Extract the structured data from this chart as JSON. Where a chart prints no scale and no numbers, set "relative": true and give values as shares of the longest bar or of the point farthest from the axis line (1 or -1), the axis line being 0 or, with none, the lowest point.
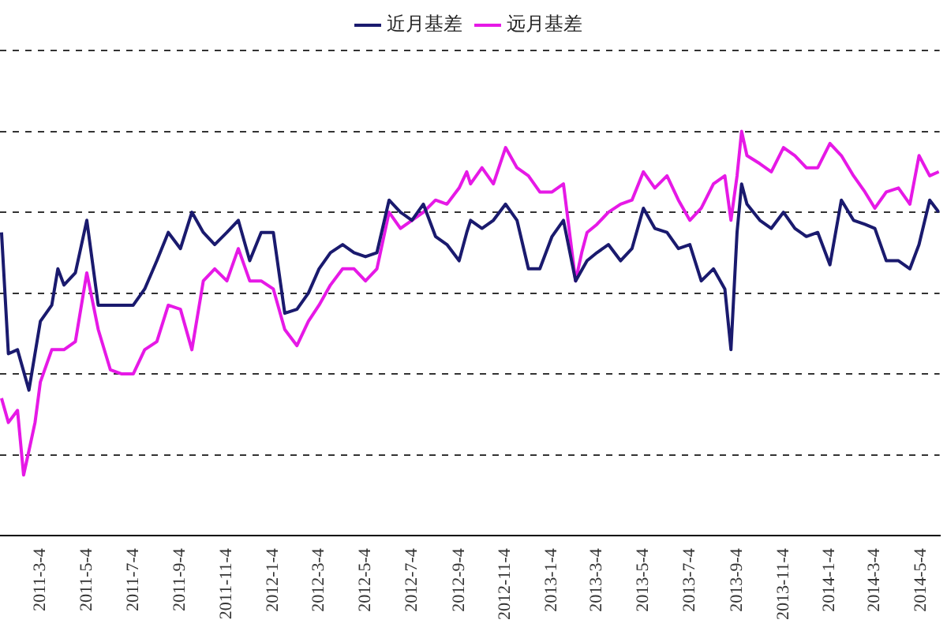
{
  "chart_data": {
    "type": "line",
    "relative": true,
    "grid": "y",
    "legend": "top",
    "marker": "none",
    "line_style": "solid",
    "xlim": [
      "2011-01-10",
      "2014-05-28"
    ],
    "xticks": [
      {
        "value": "2011-03-04",
        "label": "2011-3-4"
      },
      {
        "value": "2011-05-04",
        "label": "2011-5-4"
      },
      {
        "value": "2011-07-04",
        "label": "2011-7-4"
      },
      {
        "value": "2011-09-04",
        "label": "2011-9-4"
      },
      {
        "value": "2011-11-04",
        "label": "2011-11-4"
      },
      {
        "value": "2012-01-04",
        "label": "2012-1-4"
      },
      {
        "value": "2012-03-04",
        "label": "2012-3-4"
      },
      {
        "value": "2012-05-04",
        "label": "2012-5-4"
      },
      {
        "value": "2012-07-04",
        "label": "2012-7-4"
      },
      {
        "value": "2012-09-04",
        "label": "2012-9-4"
      },
      {
        "value": "2012-11-04",
        "label": "2012-11-4"
      },
      {
        "value": "2013-01-04",
        "label": "2013-1-4"
      },
      {
        "value": "2013-03-04",
        "label": "2013-3-4"
      },
      {
        "value": "2013-05-04",
        "label": "2013-5-4"
      },
      {
        "value": "2013-07-04",
        "label": "2013-7-4"
      },
      {
        "value": "2013-09-04",
        "label": "2013-9-4"
      },
      {
        "value": "2013-11-04",
        "label": "2013-11-4"
      },
      {
        "value": "2014-01-04",
        "label": "2014-1-4"
      },
      {
        "value": "2014-03-04",
        "label": "2014-3-4"
      },
      {
        "value": "2014-05-04",
        "label": "2014-5-4"
      }
    ],
    "series": [
      {
        "name": "近月基差",
        "color": "#1a1a6e",
        "x": [
          "2011-01-12",
          "2011-01-21",
          "2011-02-02",
          "2011-02-17",
          "2011-03-04",
          "2011-03-19",
          "2011-03-27",
          "2011-04-04",
          "2011-04-19",
          "2011-05-04",
          "2011-05-19",
          "2011-06-04",
          "2011-06-19",
          "2011-07-04",
          "2011-07-19",
          "2011-08-04",
          "2011-08-19",
          "2011-09-04",
          "2011-09-19",
          "2011-10-04",
          "2011-10-19",
          "2011-11-04",
          "2011-11-19",
          "2011-12-04",
          "2011-12-19",
          "2012-01-04",
          "2012-01-19",
          "2012-02-04",
          "2012-02-19",
          "2012-03-04",
          "2012-03-19",
          "2012-04-04",
          "2012-04-19",
          "2012-05-04",
          "2012-05-19",
          "2012-06-04",
          "2012-06-19",
          "2012-07-04",
          "2012-07-19",
          "2012-08-04",
          "2012-08-19",
          "2012-09-04",
          "2012-09-14",
          "2012-09-19",
          "2012-10-04",
          "2012-10-19",
          "2012-11-04",
          "2012-11-19",
          "2012-12-04",
          "2012-12-19",
          "2013-01-04",
          "2013-01-19",
          "2013-02-04",
          "2013-02-19",
          "2013-03-04",
          "2013-03-19",
          "2013-04-04",
          "2013-04-19",
          "2013-05-04",
          "2013-05-19",
          "2013-06-04",
          "2013-06-19",
          "2013-07-04",
          "2013-07-19",
          "2013-08-04",
          "2013-08-19",
          "2013-08-27",
          "2013-09-04",
          "2013-09-10",
          "2013-09-17",
          "2013-10-04",
          "2013-10-19",
          "2013-11-04",
          "2013-11-19",
          "2013-12-04",
          "2013-12-19",
          "2014-01-04",
          "2014-01-19",
          "2014-02-04",
          "2014-02-19",
          "2014-03-04",
          "2014-03-19",
          "2014-04-04",
          "2014-04-19",
          "2014-05-01",
          "2014-05-15",
          "2014-05-27"
        ],
        "values": [
          0.75,
          0.45,
          0.46,
          0.36,
          0.53,
          0.57,
          0.66,
          0.62,
          0.65,
          0.78,
          0.57,
          0.57,
          0.57,
          0.57,
          0.61,
          0.68,
          0.75,
          0.71,
          0.8,
          0.75,
          0.72,
          0.75,
          0.78,
          0.68,
          0.75,
          0.75,
          0.55,
          0.56,
          0.6,
          0.66,
          0.7,
          0.72,
          0.7,
          0.69,
          0.7,
          0.83,
          0.8,
          0.78,
          0.82,
          0.74,
          0.72,
          0.68,
          0.75,
          0.78,
          0.76,
          0.78,
          0.82,
          0.78,
          0.66,
          0.66,
          0.74,
          0.78,
          0.63,
          0.68,
          0.7,
          0.72,
          0.68,
          0.71,
          0.81,
          0.76,
          0.75,
          0.71,
          0.72,
          0.63,
          0.66,
          0.61,
          0.46,
          0.75,
          0.87,
          0.82,
          0.78,
          0.76,
          0.8,
          0.76,
          0.74,
          0.75,
          0.67,
          0.83,
          0.78,
          0.77,
          0.76,
          0.68,
          0.68,
          0.66,
          0.72,
          0.83,
          0.8
        ]
      },
      {
        "name": "远月基差",
        "color": "#e619e6",
        "x": [
          "2011-01-12",
          "2011-01-21",
          "2011-02-02",
          "2011-02-10",
          "2011-02-17",
          "2011-02-25",
          "2011-03-04",
          "2011-03-19",
          "2011-04-04",
          "2011-04-19",
          "2011-05-04",
          "2011-05-19",
          "2011-06-04",
          "2011-06-19",
          "2011-07-04",
          "2011-07-19",
          "2011-08-04",
          "2011-08-19",
          "2011-09-04",
          "2011-09-19",
          "2011-10-04",
          "2011-10-19",
          "2011-11-04",
          "2011-11-19",
          "2011-12-04",
          "2011-12-19",
          "2012-01-04",
          "2012-01-19",
          "2012-02-04",
          "2012-02-19",
          "2012-03-04",
          "2012-03-19",
          "2012-04-04",
          "2012-04-19",
          "2012-05-04",
          "2012-05-19",
          "2012-06-04",
          "2012-06-19",
          "2012-07-04",
          "2012-07-19",
          "2012-08-04",
          "2012-08-19",
          "2012-09-04",
          "2012-09-14",
          "2012-09-19",
          "2012-10-04",
          "2012-10-19",
          "2012-11-04",
          "2012-11-19",
          "2012-12-04",
          "2012-12-19",
          "2013-01-04",
          "2013-01-19",
          "2013-02-04",
          "2013-02-12",
          "2013-02-19",
          "2013-03-04",
          "2013-03-19",
          "2013-04-04",
          "2013-04-19",
          "2013-05-04",
          "2013-05-19",
          "2013-06-04",
          "2013-06-19",
          "2013-07-04",
          "2013-07-19",
          "2013-08-04",
          "2013-08-19",
          "2013-08-27",
          "2013-09-04",
          "2013-09-10",
          "2013-09-17",
          "2013-10-04",
          "2013-10-19",
          "2013-11-04",
          "2013-11-19",
          "2013-12-04",
          "2013-12-19",
          "2014-01-04",
          "2014-01-19",
          "2014-02-04",
          "2014-02-19",
          "2014-03-04",
          "2014-03-19",
          "2014-04-04",
          "2014-04-19",
          "2014-05-01",
          "2014-05-15",
          "2014-05-27"
        ],
        "values": [
          0.34,
          0.28,
          0.31,
          0.15,
          0.21,
          0.28,
          0.38,
          0.46,
          0.46,
          0.48,
          0.65,
          0.51,
          0.41,
          0.4,
          0.4,
          0.46,
          0.48,
          0.57,
          0.56,
          0.46,
          0.63,
          0.66,
          0.63,
          0.71,
          0.63,
          0.63,
          0.61,
          0.51,
          0.47,
          0.53,
          0.57,
          0.62,
          0.66,
          0.66,
          0.63,
          0.66,
          0.8,
          0.76,
          0.78,
          0.8,
          0.83,
          0.82,
          0.86,
          0.9,
          0.87,
          0.91,
          0.87,
          0.96,
          0.91,
          0.89,
          0.85,
          0.85,
          0.87,
          0.63,
          0.7,
          0.75,
          0.77,
          0.8,
          0.82,
          0.83,
          0.9,
          0.86,
          0.89,
          0.83,
          0.78,
          0.81,
          0.87,
          0.89,
          0.78,
          0.89,
          1,
          0.94,
          0.92,
          0.9,
          0.96,
          0.94,
          0.91,
          0.91,
          0.97,
          0.94,
          0.89,
          0.85,
          0.81,
          0.85,
          0.86,
          0.82,
          0.94,
          0.89,
          0.9
        ]
      }
    ]
  }
}
